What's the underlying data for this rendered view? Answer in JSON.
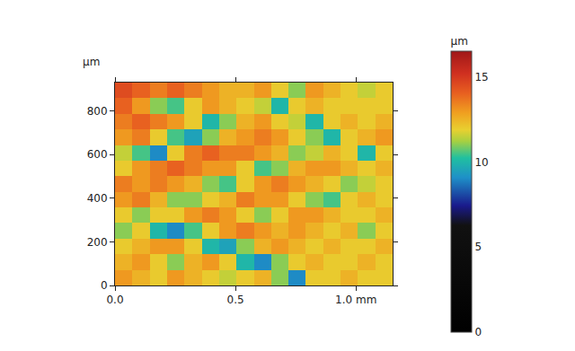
{
  "chart_data": {
    "type": "heatmap",
    "y_label": "µm",
    "x": [
      0.036,
      0.108,
      0.18,
      0.252,
      0.324,
      0.396,
      0.468,
      0.54,
      0.612,
      0.684,
      0.756,
      0.828,
      0.9,
      0.972,
      1.044,
      1.116
    ],
    "y": [
      36,
      107,
      179,
      250,
      322,
      393,
      465,
      536,
      608,
      679,
      751,
      822,
      894
    ],
    "z": [
      [
        13,
        12.5,
        12,
        13,
        12.5,
        12,
        11.5,
        12,
        12.5,
        11,
        9,
        12,
        12,
        12.5,
        12,
        12
      ],
      [
        12.5,
        13,
        12,
        11,
        12.5,
        13,
        12,
        10,
        9,
        11,
        12,
        12.5,
        12,
        12,
        12.5,
        12
      ],
      [
        12,
        12.5,
        13,
        13,
        12,
        10,
        9.5,
        11,
        12.5,
        13,
        12.5,
        12,
        12.5,
        12,
        12,
        12.5
      ],
      [
        11,
        12,
        10,
        9,
        10.5,
        12,
        13,
        13.5,
        13,
        12.5,
        13,
        12.5,
        12,
        12.5,
        11,
        12
      ],
      [
        12,
        11,
        12,
        12,
        13,
        13.5,
        13,
        12,
        11,
        12,
        13,
        13,
        12.5,
        12,
        12,
        12.5
      ],
      [
        13,
        13.5,
        12.5,
        11,
        11,
        12,
        12.5,
        13.5,
        13,
        13,
        12,
        11,
        10.5,
        12,
        12.5,
        12
      ],
      [
        13.5,
        13,
        13.5,
        13,
        12.5,
        11,
        10.5,
        12,
        13,
        13.5,
        13,
        12.5,
        12,
        11,
        11.5,
        12
      ],
      [
        12,
        13,
        13.5,
        14,
        13.5,
        13,
        13,
        12,
        10.5,
        11,
        12.5,
        13,
        13,
        12.5,
        12,
        12.5
      ],
      [
        11.5,
        10.5,
        9,
        12,
        13.5,
        14,
        13.5,
        13.5,
        13,
        12.5,
        11,
        11.5,
        12.5,
        12,
        10,
        12
      ],
      [
        13,
        13.5,
        12,
        10.5,
        9.5,
        11,
        12.5,
        13,
        13.5,
        13,
        12,
        11,
        10,
        12,
        12.5,
        13
      ],
      [
        13.5,
        14,
        13.5,
        13,
        12,
        10,
        11,
        12.5,
        13,
        12,
        11.5,
        10,
        12,
        12.5,
        12,
        12.5
      ],
      [
        14,
        13,
        11,
        10.5,
        12,
        13,
        12.5,
        12,
        11.5,
        10,
        12,
        12.5,
        12,
        12,
        12,
        12
      ],
      [
        14.5,
        14,
        13.5,
        14,
        13.5,
        13,
        12.5,
        12.5,
        13,
        12,
        11,
        13,
        12.5,
        12,
        11.5,
        12
      ]
    ],
    "xlim": [
      0,
      1.152
    ],
    "xticks": [
      {
        "value": 0,
        "label": "0.0"
      },
      0.5,
      {
        "value": 1,
        "label": "1.0 mm"
      }
    ],
    "ylim": [
      0,
      930
    ],
    "yticks": [
      0,
      200,
      400,
      600,
      800
    ],
    "colorbar": {
      "title": "µm",
      "range": [
        0,
        16.5
      ],
      "ticks": [
        0,
        5,
        10,
        15
      ]
    },
    "grid": false
  }
}
